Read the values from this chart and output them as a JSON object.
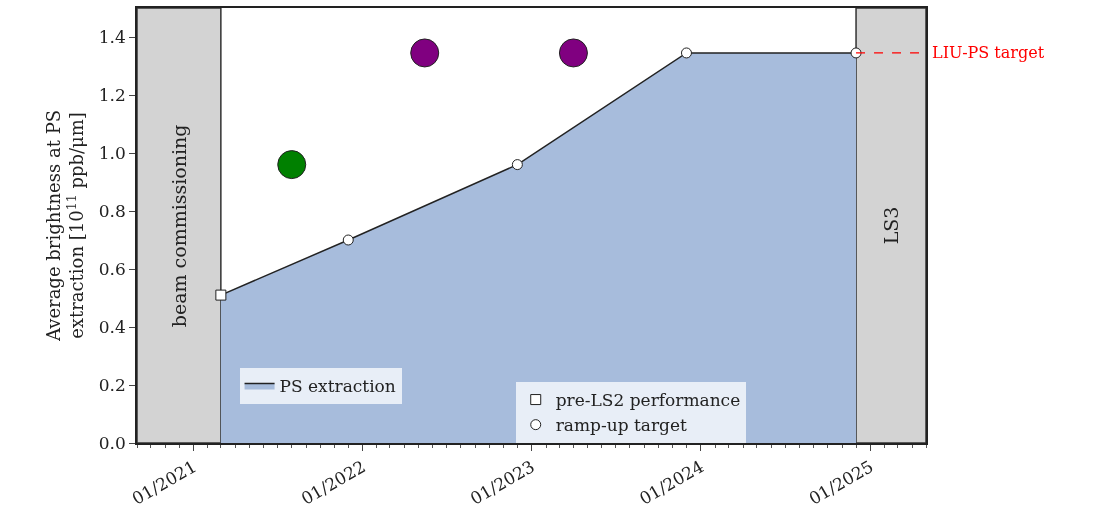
{
  "chart_data": {
    "type": "area",
    "ylabel": "Average brightness at PS\nextraction [10$^{11}$ ppb/μm]",
    "xlim": [
      "2020-09-01",
      "2025-05-01"
    ],
    "ylim": [
      0,
      1.5
    ],
    "xticks": [
      {
        "value": "2021-01-01",
        "label": "01/2021"
      },
      {
        "value": "2022-01-01",
        "label": "01/2022"
      },
      {
        "value": "2023-01-01",
        "label": "01/2023"
      },
      {
        "value": "2024-01-01",
        "label": "01/2024"
      },
      {
        "value": "2025-01-01",
        "label": "01/2025"
      }
    ],
    "yticks": [
      {
        "value": 0,
        "label": "0.0"
      },
      {
        "value": 0.2,
        "label": "0.2"
      },
      {
        "value": 0.4,
        "label": "0.4"
      },
      {
        "value": 0.6,
        "label": "0.6"
      },
      {
        "value": 0.8,
        "label": "0.8"
      },
      {
        "value": 1.0,
        "label": "1.0"
      },
      {
        "value": 1.2,
        "label": "1.2"
      },
      {
        "value": 1.4,
        "label": "1.4"
      }
    ],
    "series": [
      {
        "name": "PS extraction",
        "color": "#a7bcdc",
        "x": [
          "2021-03-01",
          "2021-12-01",
          "2022-12-01",
          "2023-12-01",
          "2024-12-01"
        ],
        "values": [
          0.51,
          0.7,
          0.96,
          1.345,
          1.345
        ]
      },
      {
        "name": "pre-LS2 performance",
        "type": "scatter",
        "marker": "square",
        "color": "#ffffff",
        "x": [
          "2021-03-01"
        ],
        "values": [
          0.51
        ]
      },
      {
        "name": "ramp-up target",
        "type": "scatter",
        "marker": "circle",
        "color": "#ffffff",
        "x": [
          "2021-12-01",
          "2022-12-01",
          "2023-12-01",
          "2024-12-01"
        ],
        "values": [
          0.7,
          0.96,
          1.345,
          1.345
        ]
      },
      {
        "type": "scatter",
        "marker": "circle",
        "color": "#008000",
        "x": [
          "2021-08-01"
        ],
        "values": [
          0.96
        ]
      },
      {
        "type": "scatter",
        "marker": "circle",
        "color": "#800080",
        "x": [
          "2022-05-15",
          "2023-04-01"
        ],
        "values": [
          1.345,
          1.345
        ]
      }
    ],
    "bands": [
      {
        "axis": "x",
        "from": "2020-09-01",
        "to": "2021-03-01",
        "label": "beam commissioning",
        "color": "#d3d3d3"
      },
      {
        "axis": "x",
        "from": "2024-12-01",
        "to": "2025-05-01",
        "label": "LS3",
        "color": "#d3d3d3"
      }
    ],
    "ref_lines": [
      {
        "axis": "y",
        "value": 1.345,
        "label": "LIU-PS target",
        "color": "#ff0000",
        "line_style": "dashed"
      }
    ],
    "grid": false,
    "legend": "bottom"
  }
}
